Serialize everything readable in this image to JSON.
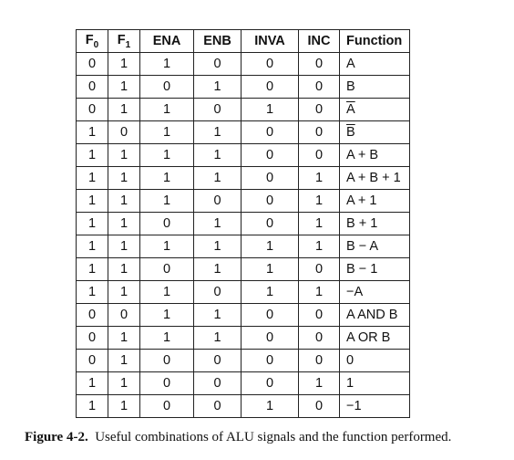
{
  "table": {
    "headers": [
      {
        "base": "F",
        "sub": "0"
      },
      {
        "base": "F",
        "sub": "1"
      },
      {
        "base": "ENA",
        "sub": ""
      },
      {
        "base": "ENB",
        "sub": ""
      },
      {
        "base": "INVA",
        "sub": ""
      },
      {
        "base": "INC",
        "sub": ""
      },
      {
        "base": "Function",
        "sub": ""
      }
    ],
    "rows": [
      {
        "f0": "0",
        "f1": "1",
        "ena": "1",
        "enb": "0",
        "inva": "0",
        "inc": "0",
        "function": "A",
        "overline": false
      },
      {
        "f0": "0",
        "f1": "1",
        "ena": "0",
        "enb": "1",
        "inva": "0",
        "inc": "0",
        "function": "B",
        "overline": false
      },
      {
        "f0": "0",
        "f1": "1",
        "ena": "1",
        "enb": "0",
        "inva": "1",
        "inc": "0",
        "function": "A",
        "overline": true
      },
      {
        "f0": "1",
        "f1": "0",
        "ena": "1",
        "enb": "1",
        "inva": "0",
        "inc": "0",
        "function": "B",
        "overline": true
      },
      {
        "f0": "1",
        "f1": "1",
        "ena": "1",
        "enb": "1",
        "inva": "0",
        "inc": "0",
        "function": "A + B",
        "overline": false
      },
      {
        "f0": "1",
        "f1": "1",
        "ena": "1",
        "enb": "1",
        "inva": "0",
        "inc": "1",
        "function": "A + B + 1",
        "overline": false
      },
      {
        "f0": "1",
        "f1": "1",
        "ena": "1",
        "enb": "0",
        "inva": "0",
        "inc": "1",
        "function": "A + 1",
        "overline": false
      },
      {
        "f0": "1",
        "f1": "1",
        "ena": "0",
        "enb": "1",
        "inva": "0",
        "inc": "1",
        "function": "B + 1",
        "overline": false
      },
      {
        "f0": "1",
        "f1": "1",
        "ena": "1",
        "enb": "1",
        "inva": "1",
        "inc": "1",
        "function": "B − A",
        "overline": false
      },
      {
        "f0": "1",
        "f1": "1",
        "ena": "0",
        "enb": "1",
        "inva": "1",
        "inc": "0",
        "function": "B − 1",
        "overline": false
      },
      {
        "f0": "1",
        "f1": "1",
        "ena": "1",
        "enb": "0",
        "inva": "1",
        "inc": "1",
        "function": "−A",
        "overline": false
      },
      {
        "f0": "0",
        "f1": "0",
        "ena": "1",
        "enb": "1",
        "inva": "0",
        "inc": "0",
        "function": "A AND B",
        "overline": false
      },
      {
        "f0": "0",
        "f1": "1",
        "ena": "1",
        "enb": "1",
        "inva": "0",
        "inc": "0",
        "function": "A OR B",
        "overline": false
      },
      {
        "f0": "0",
        "f1": "1",
        "ena": "0",
        "enb": "0",
        "inva": "0",
        "inc": "0",
        "function": "0",
        "overline": false
      },
      {
        "f0": "1",
        "f1": "1",
        "ena": "0",
        "enb": "0",
        "inva": "0",
        "inc": "1",
        "function": "1",
        "overline": false
      },
      {
        "f0": "1",
        "f1": "1",
        "ena": "0",
        "enb": "0",
        "inva": "1",
        "inc": "0",
        "function": "−1",
        "overline": false
      }
    ]
  },
  "caption": {
    "label": "Figure 4-2.",
    "text": "Useful combinations of ALU signals and the function performed."
  }
}
